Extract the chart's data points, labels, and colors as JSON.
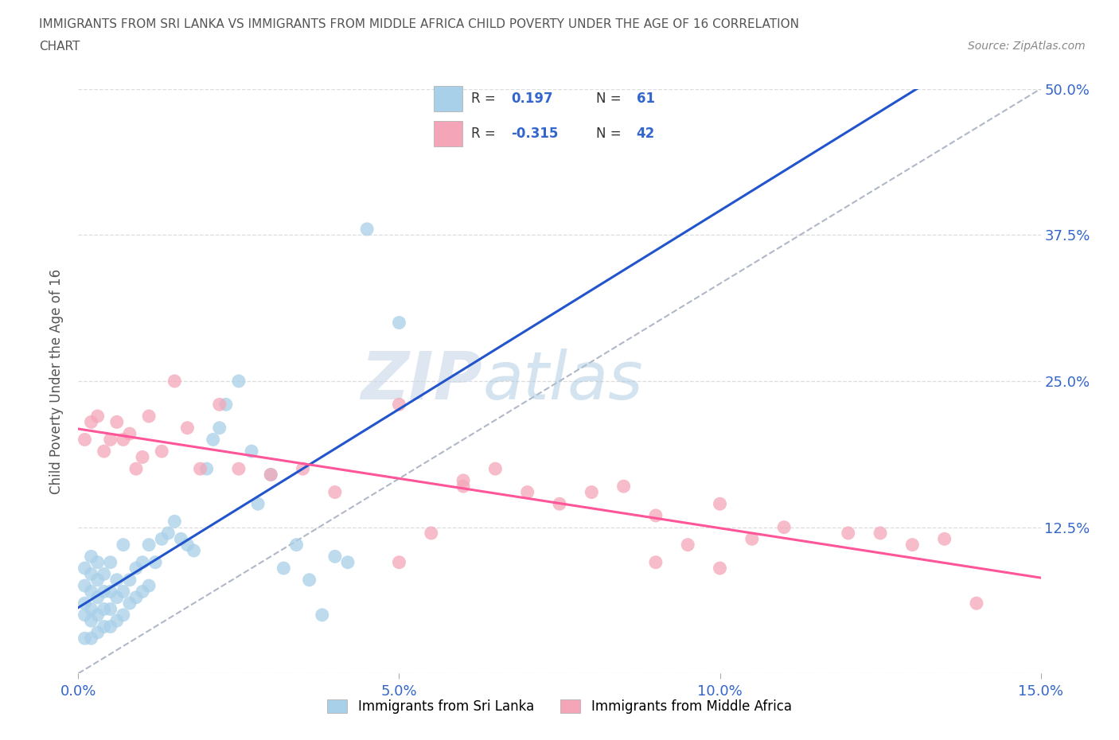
{
  "title_line1": "IMMIGRANTS FROM SRI LANKA VS IMMIGRANTS FROM MIDDLE AFRICA CHILD POVERTY UNDER THE AGE OF 16 CORRELATION",
  "title_line2": "CHART",
  "source": "Source: ZipAtlas.com",
  "ylabel": "Child Poverty Under the Age of 16",
  "xlim": [
    0.0,
    0.15
  ],
  "ylim": [
    0.0,
    0.5
  ],
  "r_sri_lanka": 0.197,
  "n_sri_lanka": 61,
  "r_middle_africa": -0.315,
  "n_middle_africa": 42,
  "color_sri_lanka": "#a8d0e8",
  "color_middle_africa": "#f4a6b8",
  "line_color_sri_lanka": "#2255cc",
  "line_color_middle_africa": "#ff5599",
  "line_color_trendline": "#b0b8c8",
  "background_color": "#ffffff",
  "watermark_zip": "ZIP",
  "watermark_atlas": "atlas",
  "sri_lanka_x": [
    0.001,
    0.001,
    0.001,
    0.001,
    0.001,
    0.002,
    0.002,
    0.002,
    0.002,
    0.002,
    0.002,
    0.003,
    0.003,
    0.003,
    0.003,
    0.003,
    0.004,
    0.004,
    0.004,
    0.004,
    0.005,
    0.005,
    0.005,
    0.005,
    0.006,
    0.006,
    0.006,
    0.007,
    0.007,
    0.007,
    0.008,
    0.008,
    0.009,
    0.009,
    0.01,
    0.01,
    0.011,
    0.011,
    0.012,
    0.013,
    0.014,
    0.015,
    0.016,
    0.017,
    0.018,
    0.02,
    0.021,
    0.022,
    0.023,
    0.025,
    0.027,
    0.028,
    0.03,
    0.032,
    0.034,
    0.036,
    0.038,
    0.04,
    0.042,
    0.045,
    0.05
  ],
  "sri_lanka_y": [
    0.03,
    0.05,
    0.06,
    0.075,
    0.09,
    0.03,
    0.045,
    0.055,
    0.07,
    0.085,
    0.1,
    0.035,
    0.05,
    0.065,
    0.08,
    0.095,
    0.04,
    0.055,
    0.07,
    0.085,
    0.04,
    0.055,
    0.07,
    0.095,
    0.045,
    0.065,
    0.08,
    0.05,
    0.07,
    0.11,
    0.06,
    0.08,
    0.065,
    0.09,
    0.07,
    0.095,
    0.075,
    0.11,
    0.095,
    0.115,
    0.12,
    0.13,
    0.115,
    0.11,
    0.105,
    0.175,
    0.2,
    0.21,
    0.23,
    0.25,
    0.19,
    0.145,
    0.17,
    0.09,
    0.11,
    0.08,
    0.05,
    0.1,
    0.095,
    0.38,
    0.3
  ],
  "middle_africa_x": [
    0.001,
    0.002,
    0.003,
    0.004,
    0.005,
    0.006,
    0.007,
    0.008,
    0.009,
    0.01,
    0.011,
    0.013,
    0.015,
    0.017,
    0.019,
    0.022,
    0.025,
    0.03,
    0.035,
    0.04,
    0.05,
    0.055,
    0.06,
    0.065,
    0.07,
    0.075,
    0.08,
    0.085,
    0.09,
    0.095,
    0.1,
    0.105,
    0.11,
    0.12,
    0.125,
    0.13,
    0.135,
    0.05,
    0.06,
    0.09,
    0.1,
    0.14
  ],
  "middle_africa_y": [
    0.2,
    0.215,
    0.22,
    0.19,
    0.2,
    0.215,
    0.2,
    0.205,
    0.175,
    0.185,
    0.22,
    0.19,
    0.25,
    0.21,
    0.175,
    0.23,
    0.175,
    0.17,
    0.175,
    0.155,
    0.23,
    0.12,
    0.165,
    0.175,
    0.155,
    0.145,
    0.155,
    0.16,
    0.135,
    0.11,
    0.145,
    0.115,
    0.125,
    0.12,
    0.12,
    0.11,
    0.115,
    0.095,
    0.16,
    0.095,
    0.09,
    0.06
  ]
}
